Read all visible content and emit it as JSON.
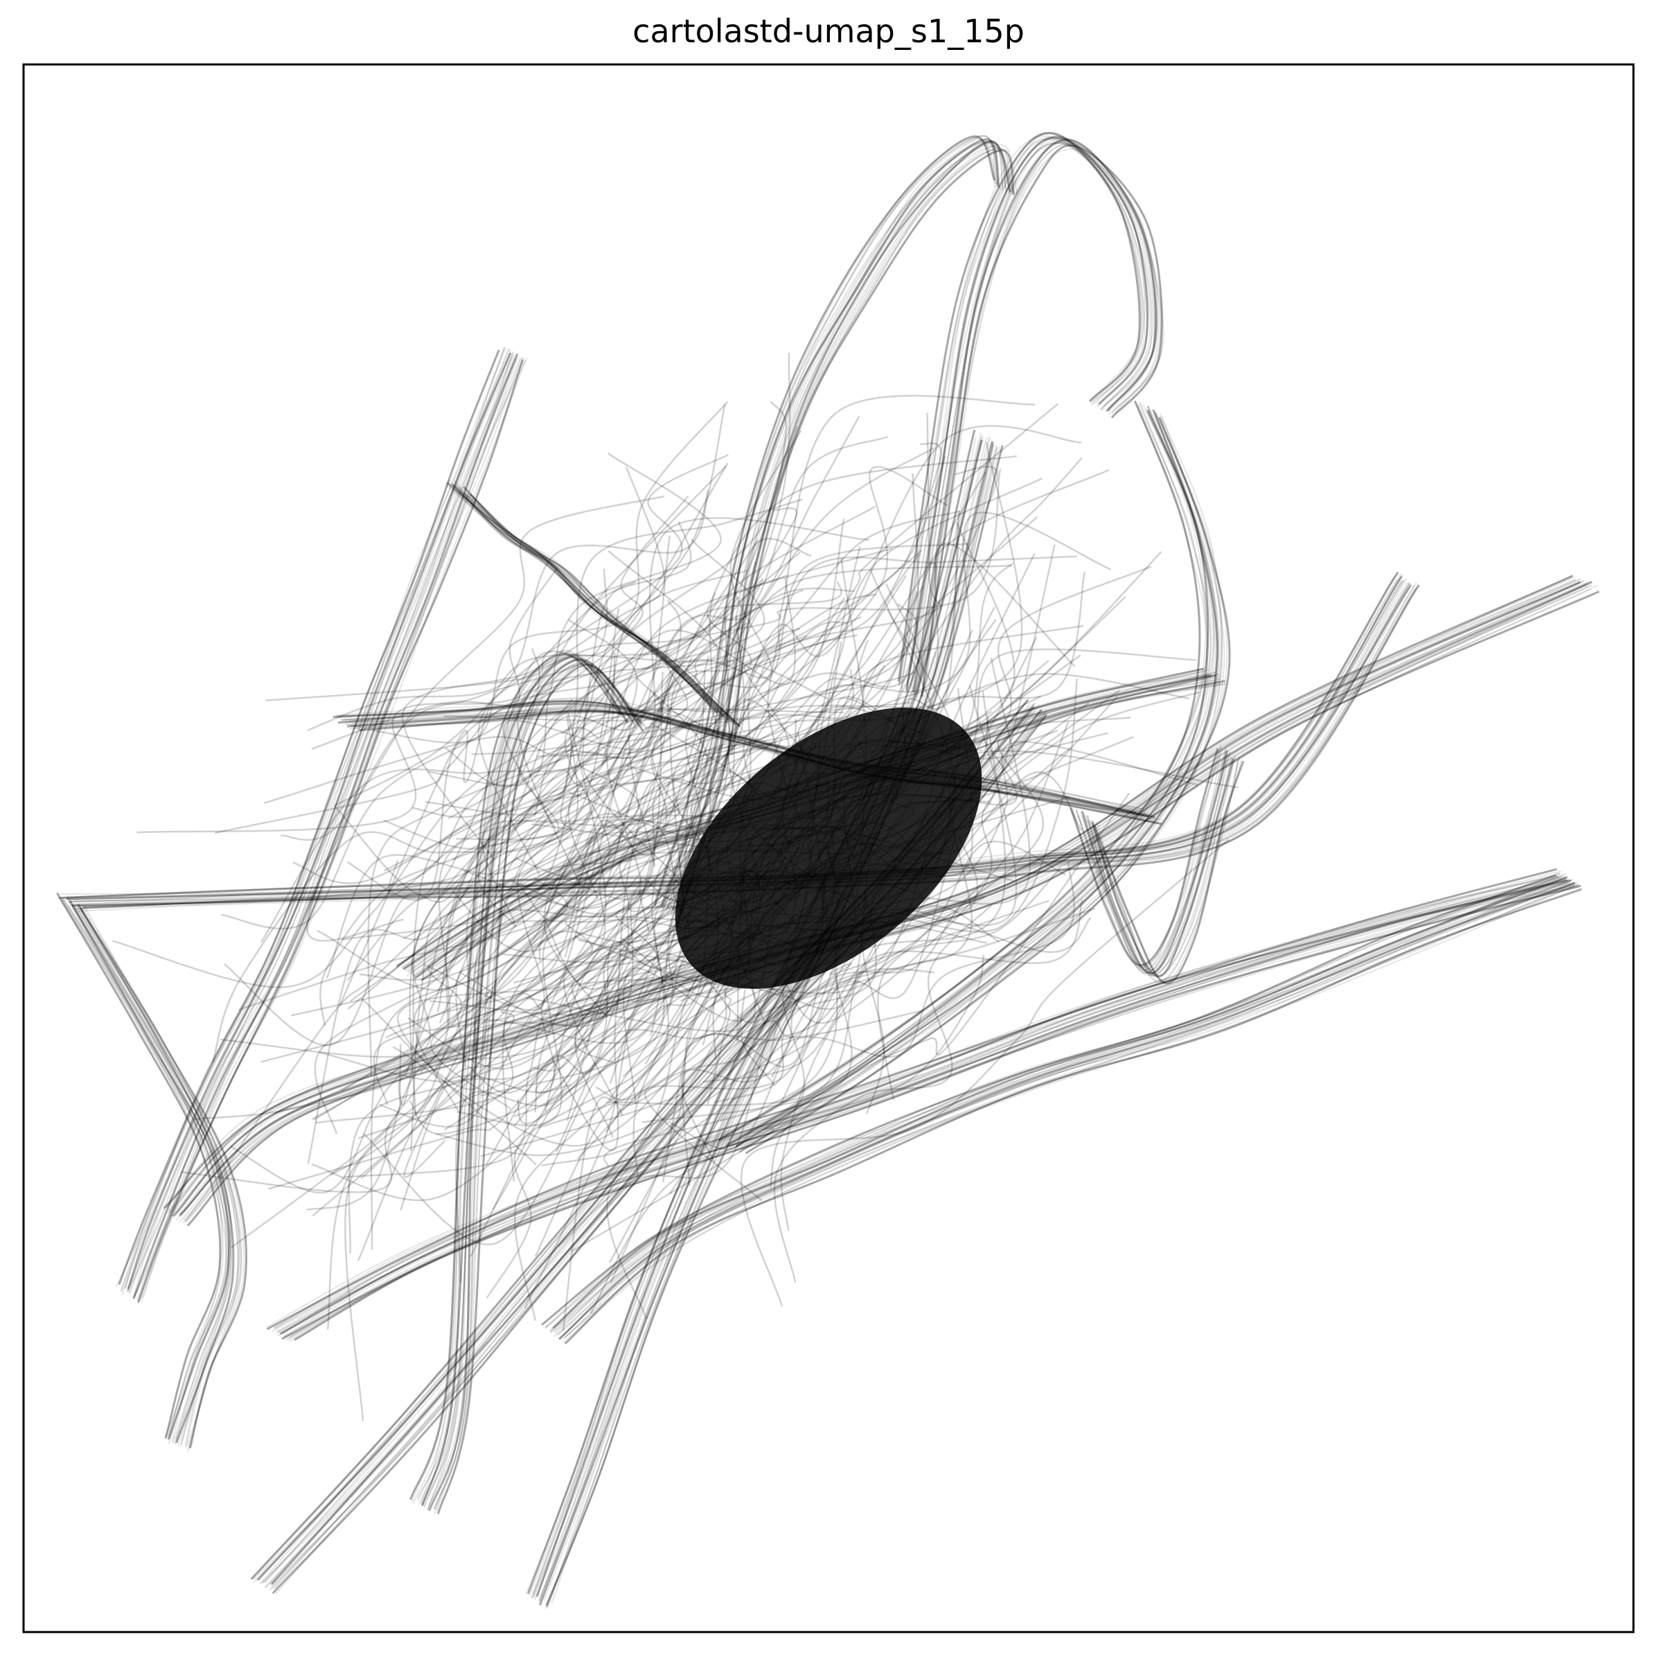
{
  "chart_data": {
    "type": "line",
    "title": "cartolastd-umap_s1_15p",
    "xlabel": "",
    "ylabel": "",
    "xlim": [
      0,
      1
    ],
    "ylim": [
      0,
      1
    ],
    "grid": false,
    "legend": "none",
    "line_color": "#000000",
    "background": "#ffffff",
    "series": [
      {
        "x": [
          0.305,
          0.28,
          0.25,
          0.22,
          0.19,
          0.16,
          0.12,
          0.085,
          0.066
        ],
        "y": [
          0.815,
          0.75,
          0.67,
          0.59,
          0.51,
          0.43,
          0.35,
          0.265,
          0.215
        ]
      },
      {
        "x": [
          0.03,
          0.18,
          0.33,
          0.48,
          0.62,
          0.76,
          0.86
        ],
        "y": [
          0.465,
          0.47,
          0.475,
          0.48,
          0.49,
          0.52,
          0.67
        ]
      },
      {
        "x": [
          0.03,
          0.08,
          0.12,
          0.13,
          0.11,
          0.095
        ],
        "y": [
          0.465,
          0.38,
          0.3,
          0.23,
          0.17,
          0.12
        ]
      },
      {
        "x": [
          0.095,
          0.16,
          0.3,
          0.46,
          0.62,
          0.78,
          0.97
        ],
        "y": [
          0.265,
          0.33,
          0.38,
          0.43,
          0.48,
          0.58,
          0.67
        ]
      },
      {
        "x": [
          0.16,
          0.25,
          0.37,
          0.52,
          0.68,
          0.84,
          0.96
        ],
        "y": [
          0.19,
          0.24,
          0.29,
          0.34,
          0.4,
          0.45,
          0.48
        ]
      },
      {
        "x": [
          0.96,
          0.86,
          0.74,
          0.62,
          0.5,
          0.4,
          0.33
        ],
        "y": [
          0.48,
          0.44,
          0.39,
          0.35,
          0.3,
          0.25,
          0.19
        ]
      },
      {
        "x": [
          0.15,
          0.24,
          0.34,
          0.44,
          0.55,
          0.63
        ],
        "y": [
          0.03,
          0.13,
          0.25,
          0.37,
          0.49,
          0.59
        ]
      },
      {
        "x": [
          0.32,
          0.35,
          0.39,
          0.44,
          0.5,
          0.56,
          0.6
        ],
        "y": [
          0.02,
          0.1,
          0.22,
          0.34,
          0.46,
          0.6,
          0.76
        ]
      },
      {
        "x": [
          0.55,
          0.57,
          0.59,
          0.62,
          0.65,
          0.69,
          0.7,
          0.67
        ],
        "y": [
          0.6,
          0.73,
          0.85,
          0.93,
          0.95,
          0.9,
          0.82,
          0.78
        ]
      },
      {
        "x": [
          0.4,
          0.43,
          0.45,
          0.48,
          0.52,
          0.56,
          0.6,
          0.61
        ],
        "y": [
          0.46,
          0.56,
          0.68,
          0.78,
          0.86,
          0.92,
          0.95,
          0.92
        ]
      },
      {
        "x": [
          0.44,
          0.52,
          0.6,
          0.67,
          0.72,
          0.74,
          0.73,
          0.7
        ],
        "y": [
          0.31,
          0.36,
          0.42,
          0.48,
          0.55,
          0.62,
          0.7,
          0.78
        ]
      },
      {
        "x": [
          0.27,
          0.3,
          0.33,
          0.36,
          0.4,
          0.44
        ],
        "y": [
          0.73,
          0.7,
          0.68,
          0.65,
          0.62,
          0.58
        ]
      },
      {
        "x": [
          0.2,
          0.28,
          0.36,
          0.44,
          0.52,
          0.6,
          0.7
        ],
        "y": [
          0.58,
          0.585,
          0.59,
          0.57,
          0.55,
          0.54,
          0.52
        ]
      },
      {
        "x": [
          0.25,
          0.27,
          0.28,
          0.3,
          0.34,
          0.38
        ],
        "y": [
          0.08,
          0.15,
          0.35,
          0.55,
          0.62,
          0.58
        ]
      },
      {
        "x": [
          0.24,
          0.3,
          0.38,
          0.47,
          0.56,
          0.65,
          0.74
        ],
        "y": [
          0.42,
          0.46,
          0.5,
          0.53,
          0.56,
          0.59,
          0.61
        ]
      },
      {
        "x": [
          0.66,
          0.68,
          0.7,
          0.72,
          0.74,
          0.75
        ],
        "y": [
          0.52,
          0.46,
          0.42,
          0.45,
          0.52,
          0.56
        ]
      }
    ]
  }
}
